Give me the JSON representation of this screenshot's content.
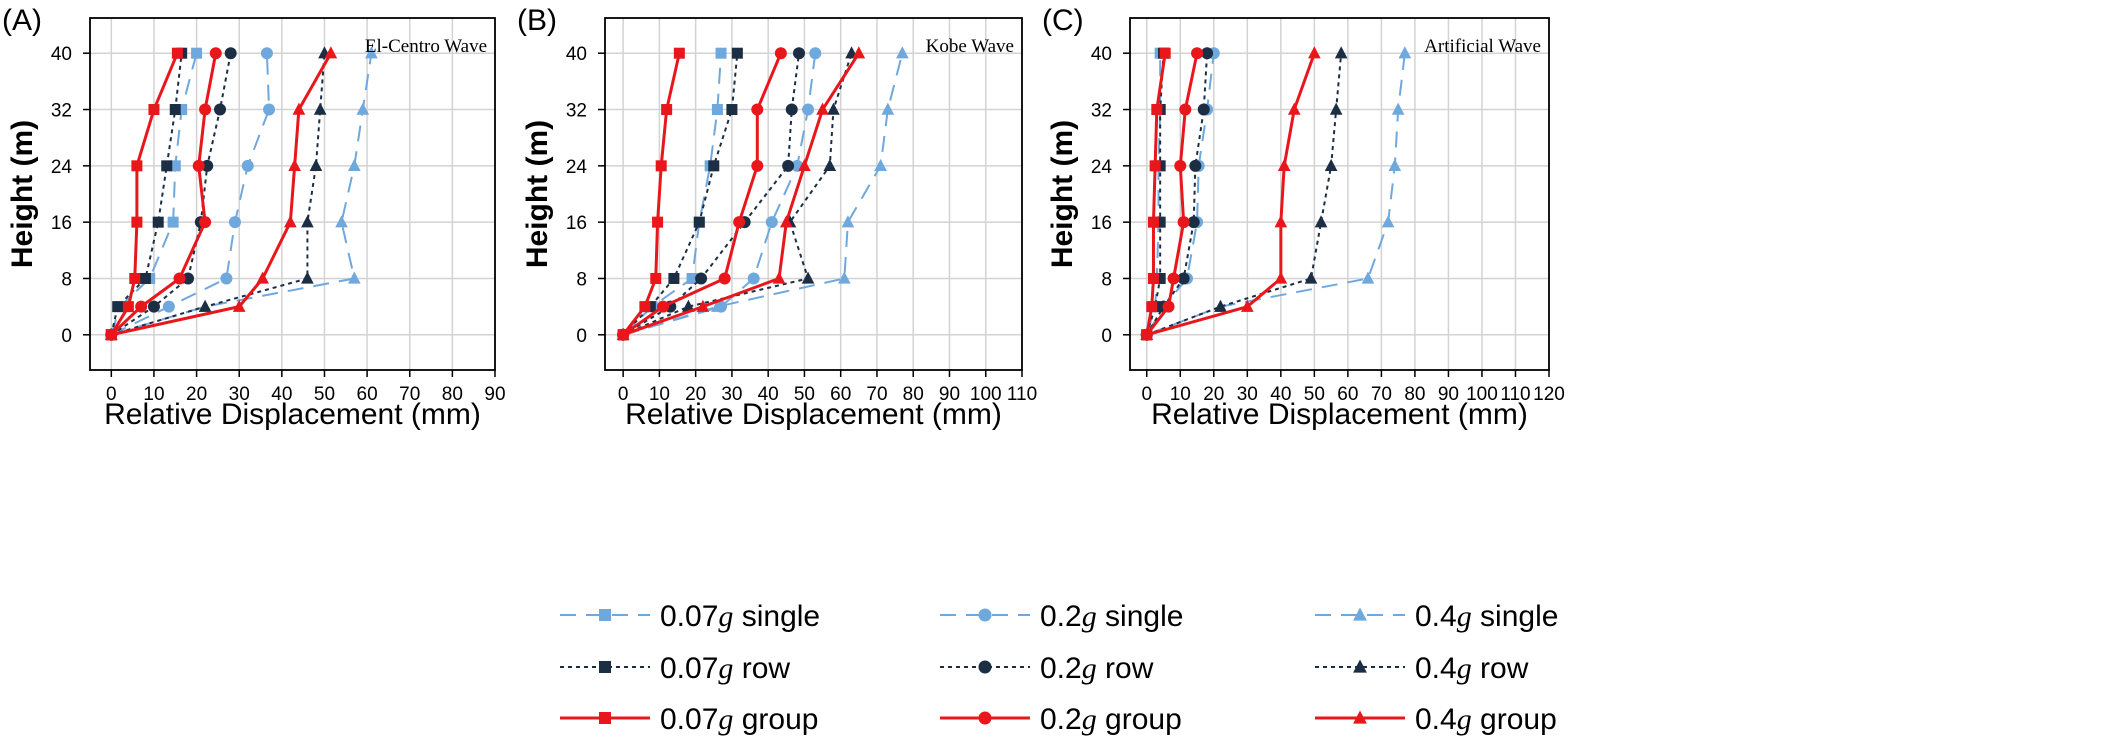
{
  "legend": {
    "entries": [
      {
        "key": "s007",
        "pre": "0.07",
        "g": "g",
        "post": " single",
        "style": "single",
        "marker": "square"
      },
      {
        "key": "s02",
        "pre": "0.2",
        "g": "g",
        "post": " single",
        "style": "single",
        "marker": "circle"
      },
      {
        "key": "s04",
        "pre": "0.4",
        "g": "g",
        "post": " single",
        "style": "single",
        "marker": "triangle"
      },
      {
        "key": "r007",
        "pre": "0.07",
        "g": "g",
        "post": " row",
        "style": "row",
        "marker": "square"
      },
      {
        "key": "r02",
        "pre": "0.2",
        "g": "g",
        "post": " row",
        "style": "row",
        "marker": "circle"
      },
      {
        "key": "r04",
        "pre": "0.4",
        "g": "g",
        "post": " row",
        "style": "row",
        "marker": "triangle"
      },
      {
        "key": "g007",
        "pre": "0.07",
        "g": "g",
        "post": " group",
        "style": "group",
        "marker": "square"
      },
      {
        "key": "g02",
        "pre": "0.2",
        "g": "g",
        "post": " group",
        "style": "group",
        "marker": "circle"
      },
      {
        "key": "g04",
        "pre": "0.4",
        "g": "g",
        "post": " group",
        "style": "group",
        "marker": "triangle"
      }
    ]
  },
  "styles": {
    "single": {
      "color": "#6fa8dc",
      "dash": "16,10",
      "width": 2
    },
    "row": {
      "color": "#1c2e44",
      "dash": "4,4",
      "width": 2
    },
    "group": {
      "color": "#e8171b",
      "dash": "",
      "width": 3
    }
  },
  "chart_data": [
    {
      "type": "line",
      "panel_label": "(A)",
      "title": "El-Centro Wave",
      "xlabel": "Relative Displacement (mm)",
      "ylabel": "Height (m)",
      "xlim": [
        -5,
        90
      ],
      "ylim": [
        -5,
        45
      ],
      "xticks": [
        0,
        10,
        20,
        30,
        40,
        50,
        60,
        70,
        80,
        90
      ],
      "yticks": [
        0,
        8,
        16,
        24,
        32,
        40
      ],
      "grid": true,
      "y": [
        0,
        4,
        8,
        16,
        24,
        32,
        40
      ],
      "series": [
        {
          "key": "s007",
          "x": [
            0,
            2,
            9,
            14.5,
            15,
            16.5,
            20
          ]
        },
        {
          "key": "s02",
          "x": [
            0,
            13.5,
            27,
            29,
            32,
            37,
            36.5
          ]
        },
        {
          "key": "s04",
          "x": [
            0,
            22,
            57,
            54,
            57,
            59,
            61
          ]
        },
        {
          "key": "r007",
          "x": [
            0,
            1.5,
            8,
            11,
            13,
            15,
            16.5
          ]
        },
        {
          "key": "r02",
          "x": [
            0,
            10,
            18,
            21,
            22.5,
            25.5,
            28
          ]
        },
        {
          "key": "r04",
          "x": [
            0,
            22,
            46,
            46,
            48,
            49,
            50
          ]
        },
        {
          "key": "g007",
          "x": [
            0,
            4,
            5.5,
            6,
            6,
            10,
            15.5
          ]
        },
        {
          "key": "g02",
          "x": [
            0,
            7,
            16,
            22,
            20.5,
            22,
            24.5
          ]
        },
        {
          "key": "g04",
          "x": [
            0,
            30,
            35.5,
            42,
            43,
            44,
            51.5
          ]
        }
      ]
    },
    {
      "type": "line",
      "panel_label": "(B)",
      "title": "Kobe Wave",
      "xlabel": "Relative Displacement (mm)",
      "ylabel": "Height (m)",
      "xlim": [
        -5,
        110
      ],
      "ylim": [
        -5,
        45
      ],
      "xticks": [
        0,
        10,
        20,
        30,
        40,
        50,
        60,
        70,
        80,
        90,
        100,
        110
      ],
      "yticks": [
        0,
        8,
        16,
        24,
        32,
        40
      ],
      "grid": true,
      "y": [
        0,
        4,
        8,
        16,
        24,
        32,
        40
      ],
      "series": [
        {
          "key": "s007",
          "x": [
            0,
            8,
            19,
            21,
            24,
            26,
            27
          ]
        },
        {
          "key": "s02",
          "x": [
            0,
            27,
            36,
            41,
            48,
            51,
            53
          ]
        },
        {
          "key": "s04",
          "x": [
            0,
            26,
            61,
            62,
            71,
            73,
            77
          ]
        },
        {
          "key": "r007",
          "x": [
            0,
            7.5,
            14,
            21,
            25,
            30,
            31.5
          ]
        },
        {
          "key": "r02",
          "x": [
            0,
            13,
            21.5,
            33.5,
            45.5,
            46.5,
            48.5
          ]
        },
        {
          "key": "r04",
          "x": [
            0,
            18,
            51,
            46,
            57,
            58,
            63
          ]
        },
        {
          "key": "g007",
          "x": [
            0,
            6,
            9,
            9.5,
            10.5,
            12,
            15.5
          ]
        },
        {
          "key": "g02",
          "x": [
            0,
            11,
            28,
            32,
            37,
            37,
            43.5
          ]
        },
        {
          "key": "g04",
          "x": [
            0,
            22,
            43,
            45,
            50,
            55,
            65
          ]
        }
      ]
    },
    {
      "type": "line",
      "panel_label": "(C)",
      "title": "Artificial Wave",
      "xlabel": "Relative Displacement (mm)",
      "ylabel": "Height (m)",
      "xlim": [
        -5,
        120
      ],
      "ylim": [
        -5,
        45
      ],
      "xticks": [
        0,
        10,
        20,
        30,
        40,
        50,
        60,
        70,
        80,
        90,
        100,
        110,
        120
      ],
      "yticks": [
        0,
        8,
        16,
        24,
        32,
        40
      ],
      "grid": true,
      "y": [
        0,
        4,
        8,
        16,
        24,
        32,
        40
      ],
      "series": [
        {
          "key": "s007",
          "x": [
            0,
            2.5,
            3,
            3.5,
            3.5,
            4,
            4
          ]
        },
        {
          "key": "s02",
          "x": [
            0,
            5,
            12,
            15,
            15.5,
            18,
            20
          ]
        },
        {
          "key": "s04",
          "x": [
            0,
            22,
            66,
            72,
            74,
            75,
            77
          ]
        },
        {
          "key": "r007",
          "x": [
            0,
            2.5,
            4,
            4,
            4,
            4,
            5
          ]
        },
        {
          "key": "r02",
          "x": [
            0,
            5,
            11,
            14,
            14.5,
            17,
            18
          ]
        },
        {
          "key": "r04",
          "x": [
            0,
            22,
            49,
            52,
            55,
            56.5,
            58
          ]
        },
        {
          "key": "g007",
          "x": [
            0,
            1.5,
            2,
            2,
            2.5,
            3,
            5.5
          ]
        },
        {
          "key": "g02",
          "x": [
            0,
            6.5,
            8,
            11,
            10,
            11.5,
            15
          ]
        },
        {
          "key": "g04",
          "x": [
            0,
            30,
            40,
            40,
            41,
            44,
            50
          ]
        }
      ]
    }
  ]
}
